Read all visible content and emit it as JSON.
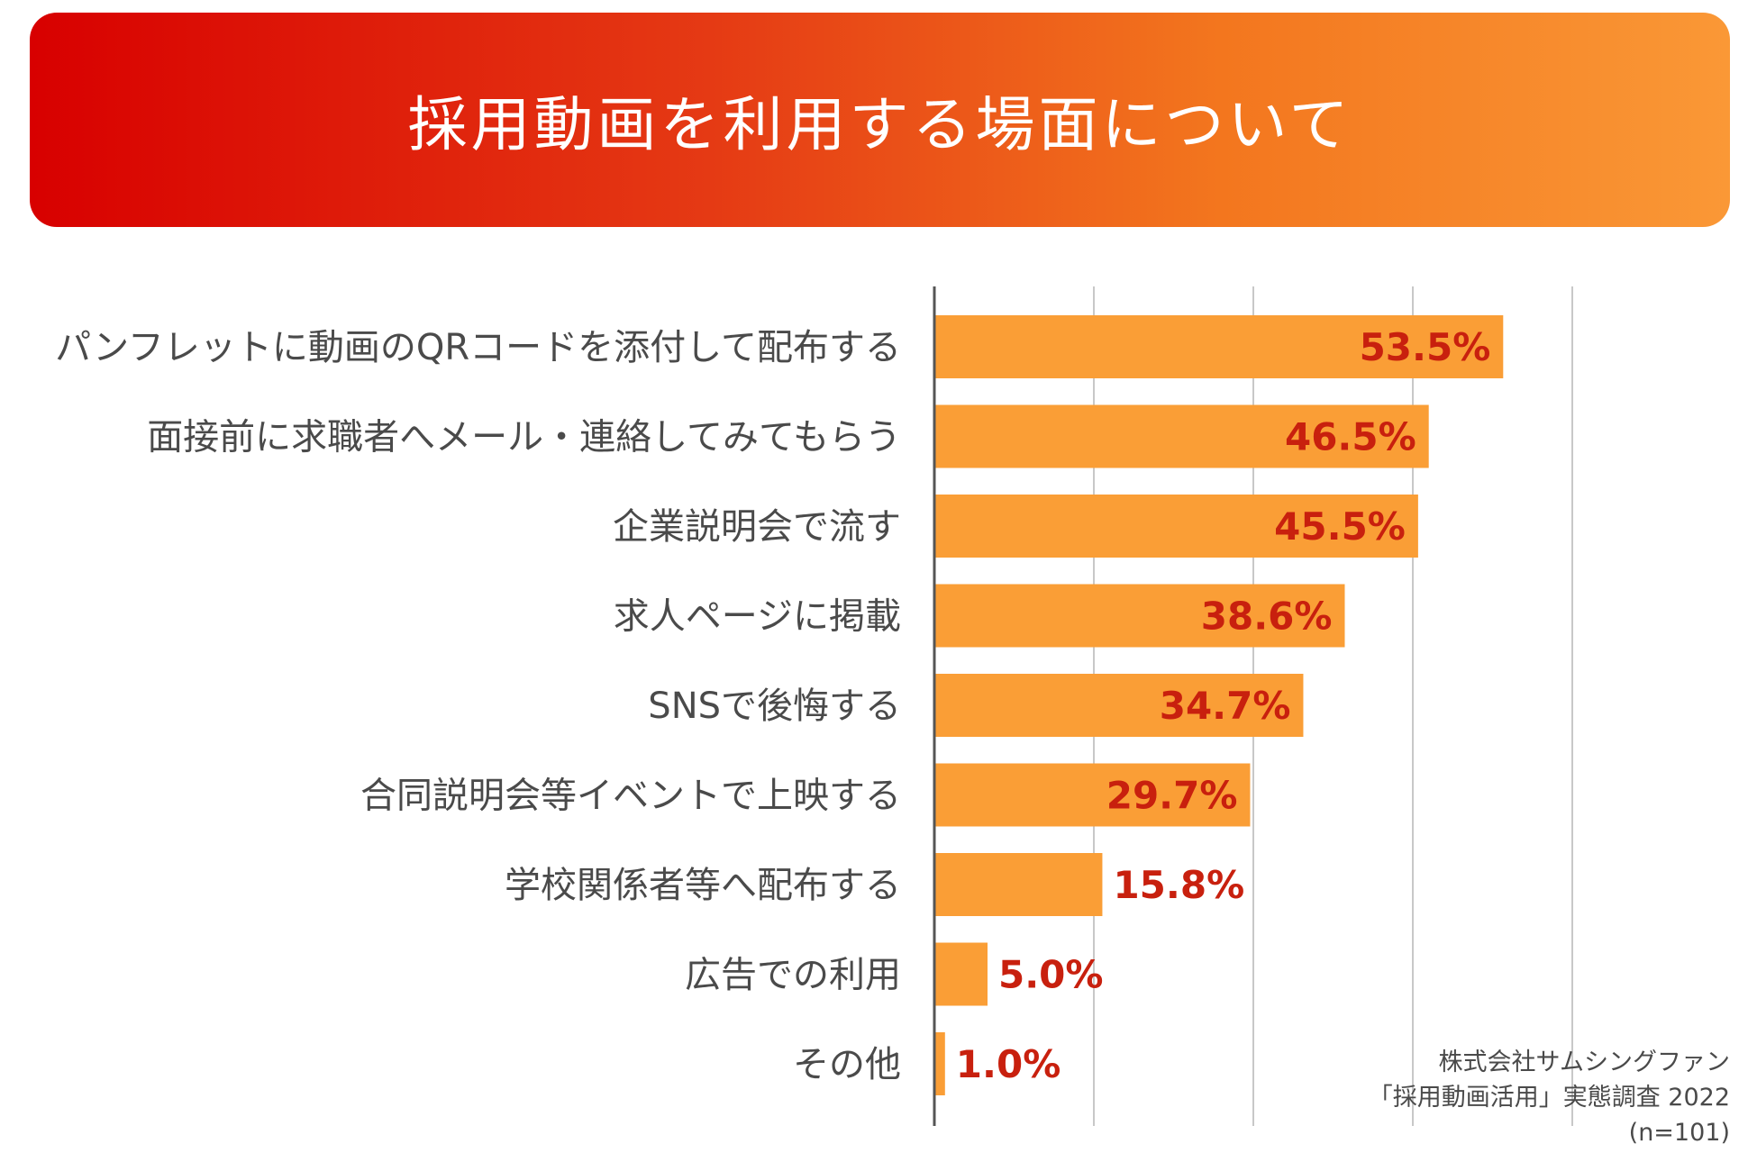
{
  "header": {
    "title": "採用動画を利用する場面について"
  },
  "chart_data": {
    "type": "bar",
    "orientation": "horizontal",
    "title": "採用動画を利用する場面について",
    "categories": [
      "パンフレットに動画のQRコードを添付して配布する",
      "面接前に求職者へメール・連絡してみてもらう",
      "企業説明会で流す",
      "求人ページに掲載",
      "SNSで後悔する",
      "合同説明会等イベントで上映する",
      "学校関係者等へ配布する",
      "広告での利用",
      "その他"
    ],
    "values": [
      53.5,
      46.5,
      45.5,
      38.6,
      34.7,
      29.7,
      15.8,
      5.0,
      1.0
    ],
    "value_labels": [
      "53.5%",
      "46.5%",
      "45.5%",
      "38.6%",
      "34.7%",
      "29.7%",
      "15.8%",
      "5.0%",
      "1.0%"
    ],
    "xlim": [
      0,
      60
    ],
    "grid_step": 15,
    "grid": true,
    "unit": "%",
    "bar_color": "#fa9e36",
    "label_color": "#c8200e",
    "axis_color": "#555555",
    "grid_color": "#c8c8c8"
  },
  "source": {
    "line1": "株式会社サムシングファン",
    "line2": "「採用動画活用」実態調査 2022",
    "line3": "(n=101)"
  }
}
